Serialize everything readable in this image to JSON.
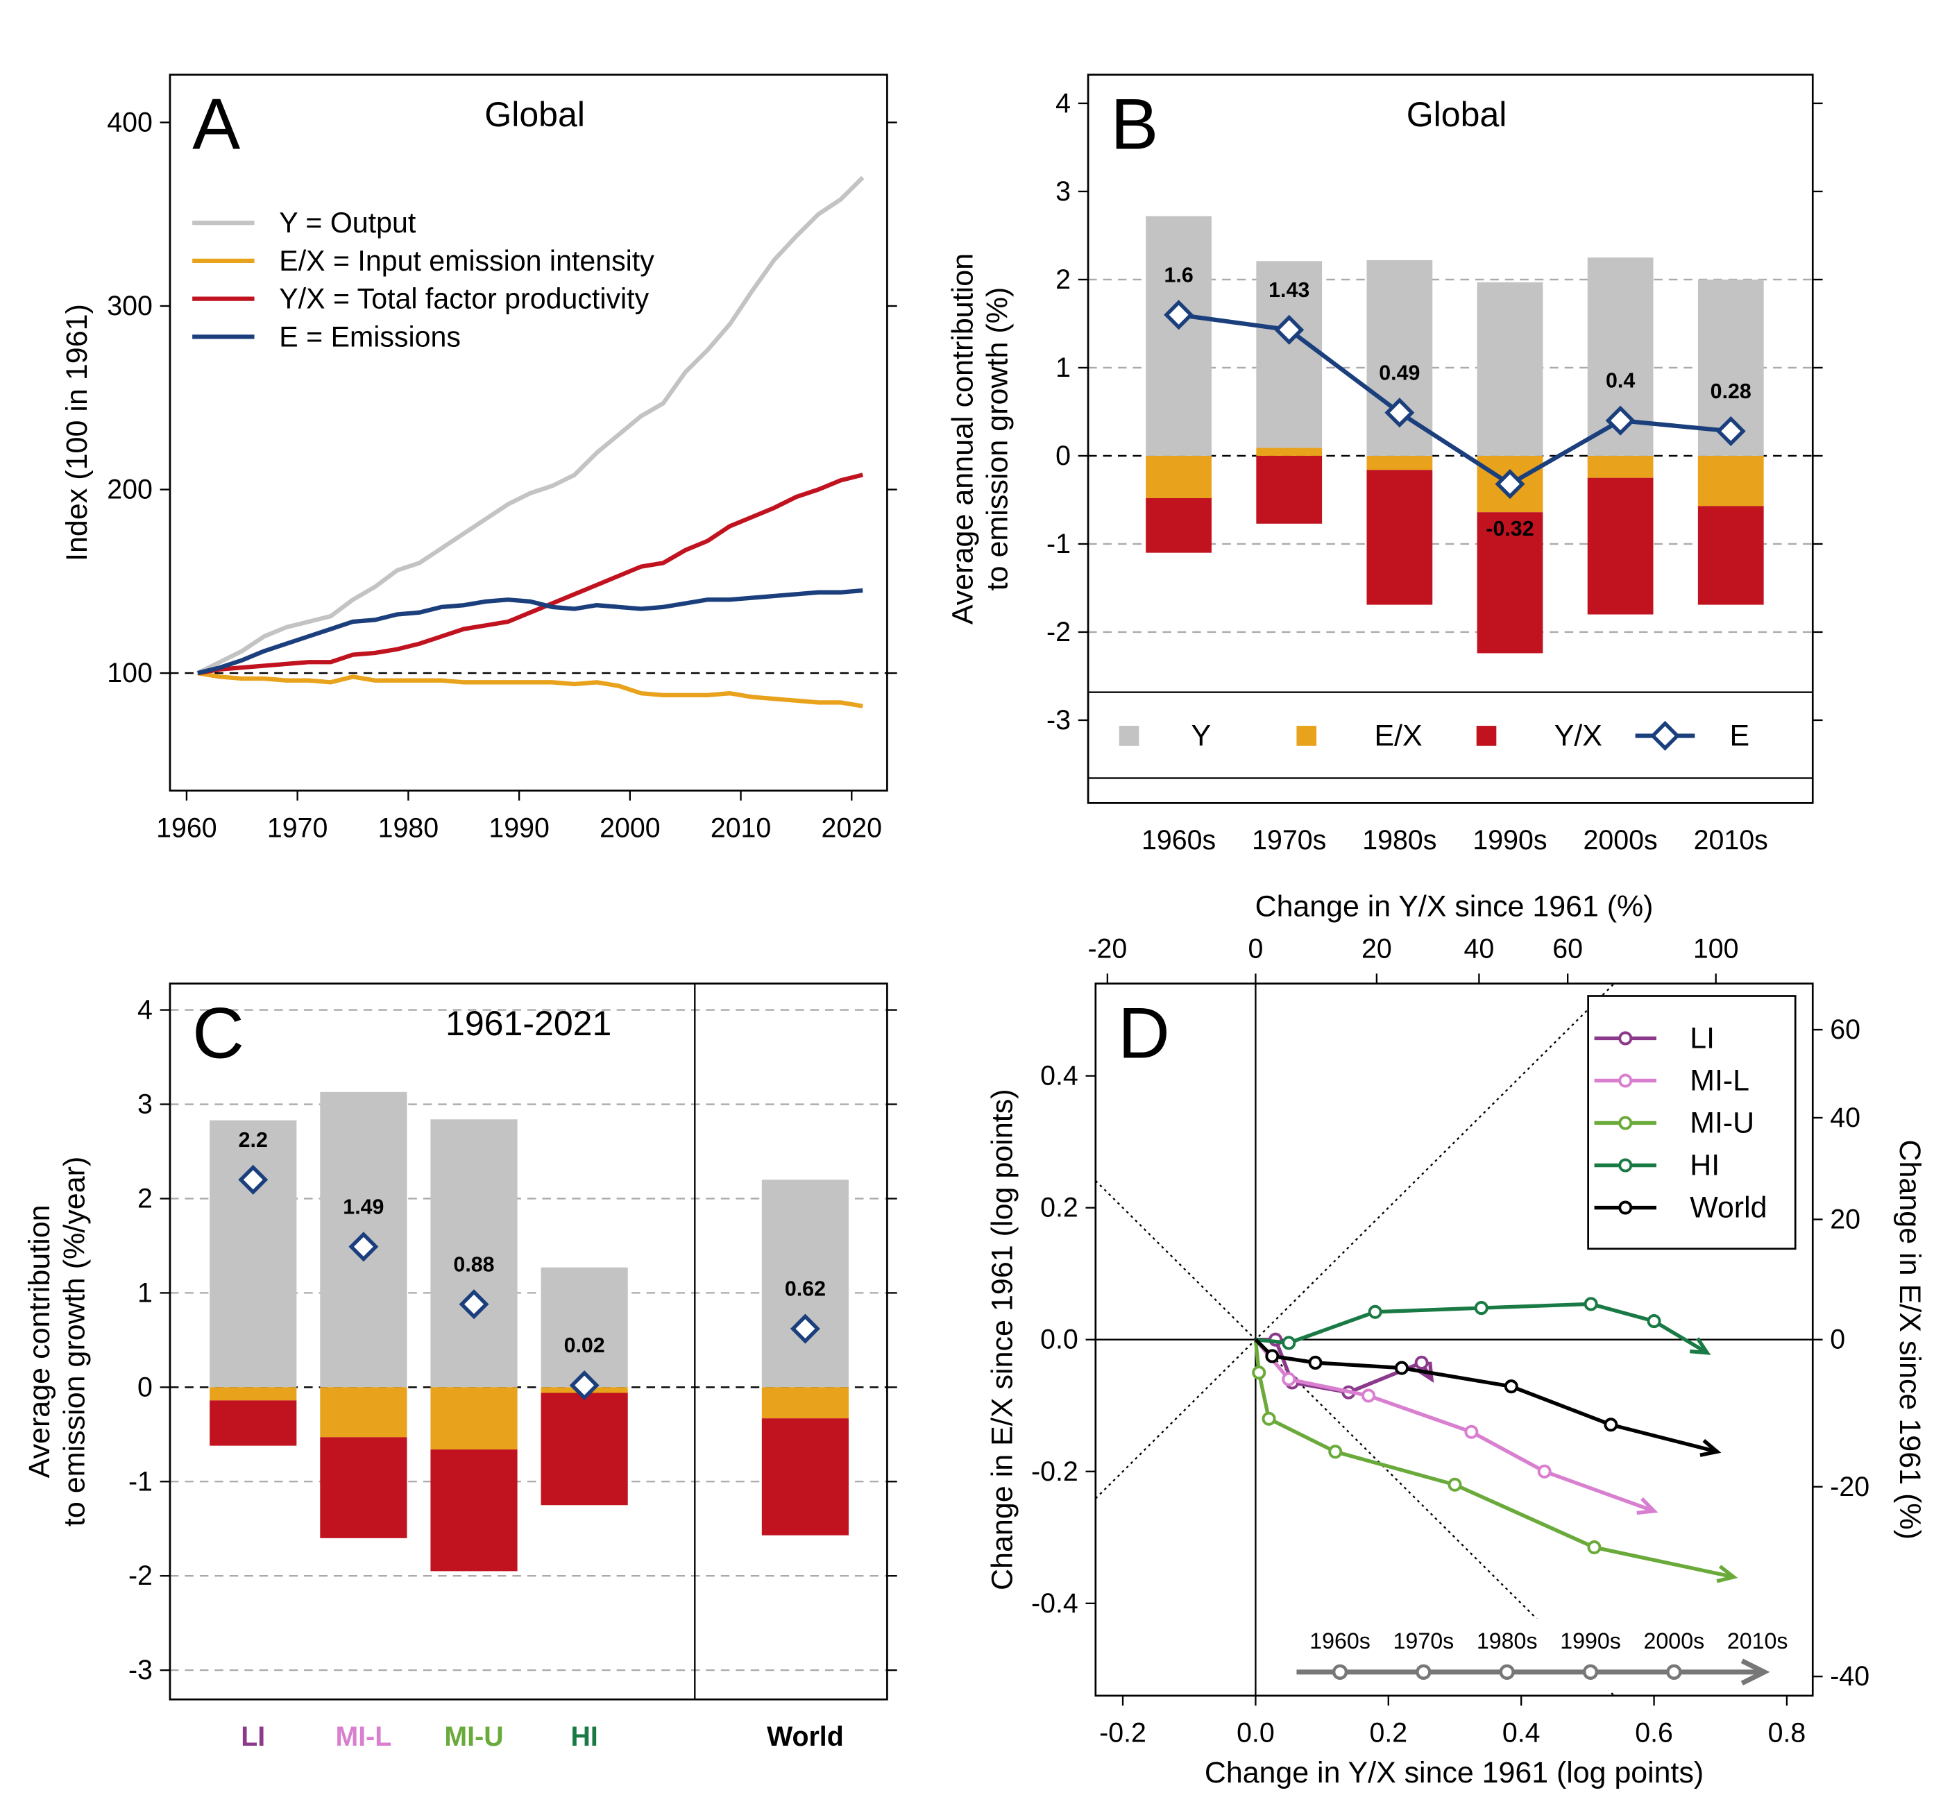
{
  "chart_data": [
    {
      "type": "line",
      "panel": "A",
      "annotation": "Global",
      "ylabel": [
        "Index (100 in 1961)"
      ],
      "x": [
        1961,
        1963,
        1965,
        1967,
        1969,
        1971,
        1973,
        1975,
        1977,
        1979,
        1981,
        1983,
        1985,
        1987,
        1989,
        1991,
        1993,
        1995,
        1997,
        1999,
        2001,
        2003,
        2005,
        2007,
        2009,
        2011,
        2013,
        2015,
        2017,
        2019,
        2021
      ],
      "series": [
        {
          "name": "Y = Output",
          "color": "#c3c3c3",
          "values": [
            100,
            106,
            112,
            120,
            125,
            128,
            131,
            140,
            147,
            156,
            160,
            168,
            176,
            184,
            192,
            198,
            202,
            208,
            220,
            230,
            240,
            247,
            264,
            276,
            290,
            308,
            325,
            338,
            350,
            358,
            370
          ]
        },
        {
          "name": "E/X = Input emission intensity",
          "color": "#e8a21b",
          "values": [
            100,
            98,
            97,
            97,
            96,
            96,
            95,
            98,
            96,
            96,
            96,
            96,
            95,
            95,
            95,
            95,
            95,
            94,
            95,
            93,
            89,
            88,
            88,
            88,
            89,
            87,
            86,
            85,
            84,
            84,
            82
          ]
        },
        {
          "name": "Y/X = Total factor productivity",
          "color": "#c0121f",
          "values": [
            100,
            102,
            103,
            104,
            105,
            106,
            106,
            110,
            111,
            113,
            116,
            120,
            124,
            126,
            128,
            133,
            138,
            143,
            148,
            153,
            158,
            160,
            167,
            172,
            180,
            185,
            190,
            196,
            200,
            205,
            208
          ]
        },
        {
          "name": "E = Emissions",
          "color": "#1b3f7c",
          "values": [
            100,
            103,
            107,
            112,
            116,
            120,
            124,
            128,
            129,
            132,
            133,
            136,
            137,
            139,
            140,
            139,
            136,
            135,
            137,
            136,
            135,
            136,
            138,
            140,
            140,
            141,
            142,
            143,
            144,
            144,
            145
          ]
        }
      ],
      "xlim": [
        1958.5,
        2023.2
      ],
      "xticks": [
        1960,
        1970,
        1980,
        1990,
        2000,
        2010,
        2020
      ],
      "ylim": [
        36,
        426
      ],
      "yticks": [
        100,
        200,
        300,
        400
      ],
      "hline": 100
    },
    {
      "type": "bar",
      "panel": "B",
      "annotation": "Global",
      "ylabel": [
        "Average annual contribution",
        "to emission growth (%)"
      ],
      "categories": [
        "1960s",
        "1970s",
        "1980s",
        "1990s",
        "2000s",
        "2010s"
      ],
      "series": [
        {
          "name": "Y",
          "color": "#c3c3c3",
          "values": [
            2.72,
            2.12,
            2.22,
            1.97,
            2.25,
            2.0
          ]
        },
        {
          "name": "E/X",
          "color": "#e8a21b",
          "values": [
            -0.48,
            0.09,
            -0.16,
            -0.64,
            -0.25,
            -0.57
          ]
        },
        {
          "name": "Y/X",
          "color": "#c0121f",
          "values": [
            -0.62,
            -0.77,
            -1.53,
            -1.6,
            -1.55,
            -1.12
          ]
        },
        {
          "name": "E",
          "color": "#1b3f7c",
          "marker": "diamond",
          "line": true,
          "values": [
            1.6,
            1.43,
            0.49,
            -0.32,
            0.4,
            0.28
          ]
        }
      ],
      "ylim": [
        -3.94,
        4.325
      ],
      "yticks": [
        -3,
        -2,
        -1,
        0,
        1,
        2,
        3,
        4
      ],
      "grid": [
        -2,
        -1,
        1,
        2
      ],
      "hline": 0
    },
    {
      "type": "bar",
      "panel": "C",
      "annotation": "1961-2021",
      "ylabel": [
        "Average contribution",
        "to emission growth (%/year)"
      ],
      "categories": [
        "LI",
        "MI-L",
        "MI-U",
        "HI",
        "World"
      ],
      "category_colors": [
        "#8b3a8b",
        "#d97fd0",
        "#6aaa3a",
        "#1a7a45",
        "#000000"
      ],
      "series": [
        {
          "name": "Y",
          "color": "#c3c3c3",
          "values": [
            2.83,
            3.13,
            2.84,
            1.27,
            2.2
          ]
        },
        {
          "name": "E/X",
          "color": "#e8a21b",
          "values": [
            -0.14,
            -0.53,
            -0.66,
            -0.06,
            -0.33
          ]
        },
        {
          "name": "Y/X",
          "color": "#c0121f",
          "values": [
            -0.48,
            -1.07,
            -1.29,
            -1.19,
            -1.24
          ]
        },
        {
          "name": "E",
          "color": "#1b3f7c",
          "marker": "diamond",
          "line": false,
          "values": [
            2.2,
            1.49,
            0.88,
            0.02,
            0.62
          ]
        }
      ],
      "ylim": [
        -3.31,
        4.28
      ],
      "yticks": [
        -3,
        -2,
        -1,
        0,
        1,
        2,
        3,
        4
      ],
      "grid": true,
      "hline": 0
    },
    {
      "type": "line",
      "panel": "D",
      "xlabel": "Change in Y/X since 1961 (log points)",
      "x2label": "Change in Y/X since 1961 (%)",
      "ylabel": [
        "Change in E/X since 1961 (log points)"
      ],
      "y2label": "Change in E/X since 1961 (%)",
      "series": [
        {
          "name": "LI",
          "color": "#8b3a8b",
          "x": [
            0,
            0.03,
            0.055,
            0.14,
            0.25,
            0.265
          ],
          "y": [
            0,
            0,
            -0.065,
            -0.08,
            -0.035,
            -0.06
          ]
        },
        {
          "name": "MI-L",
          "color": "#d97fd0",
          "x": [
            0,
            0.05,
            0.17,
            0.325,
            0.435,
            0.6
          ],
          "y": [
            0,
            -0.06,
            -0.085,
            -0.14,
            -0.2,
            -0.26
          ]
        },
        {
          "name": "MI-U",
          "color": "#6aaa3a",
          "x": [
            0,
            0.005,
            0.02,
            0.12,
            0.3,
            0.51,
            0.72
          ],
          "y": [
            0,
            -0.05,
            -0.12,
            -0.17,
            -0.22,
            -0.315,
            -0.36
          ]
        },
        {
          "name": "HI",
          "color": "#1a7a45",
          "x": [
            0,
            0.05,
            0.18,
            0.34,
            0.505,
            0.6,
            0.68
          ],
          "y": [
            0,
            -0.005,
            0.042,
            0.048,
            0.054,
            0.028,
            -0.02
          ]
        },
        {
          "name": "World",
          "color": "#000000",
          "x": [
            0,
            0.025,
            0.09,
            0.22,
            0.385,
            0.535,
            0.695
          ],
          "y": [
            0,
            -0.025,
            -0.035,
            -0.043,
            -0.071,
            -0.129,
            -0.17
          ]
        }
      ],
      "timeline": [
        "1960s",
        "1970s",
        "1980s",
        "1990s",
        "2000s",
        "2010s"
      ],
      "xlim": [
        -0.241,
        0.839
      ],
      "xticks": [
        -0.2,
        {
          "value": 0,
          "label": "0.0"
        },
        0.2,
        0.4,
        0.6,
        0.8
      ],
      "ylim": [
        -0.54,
        0.54
      ],
      "yticks": [
        -0.4,
        -0.2,
        {
          "value": 0,
          "label": "0.0"
        },
        0.2,
        0.4
      ],
      "x2ticks": [
        -20,
        0,
        20,
        40,
        60,
        100
      ],
      "y2ticks": [
        -40,
        -20,
        0,
        20,
        40,
        60
      ],
      "hline": 0,
      "vline": 0
    }
  ]
}
